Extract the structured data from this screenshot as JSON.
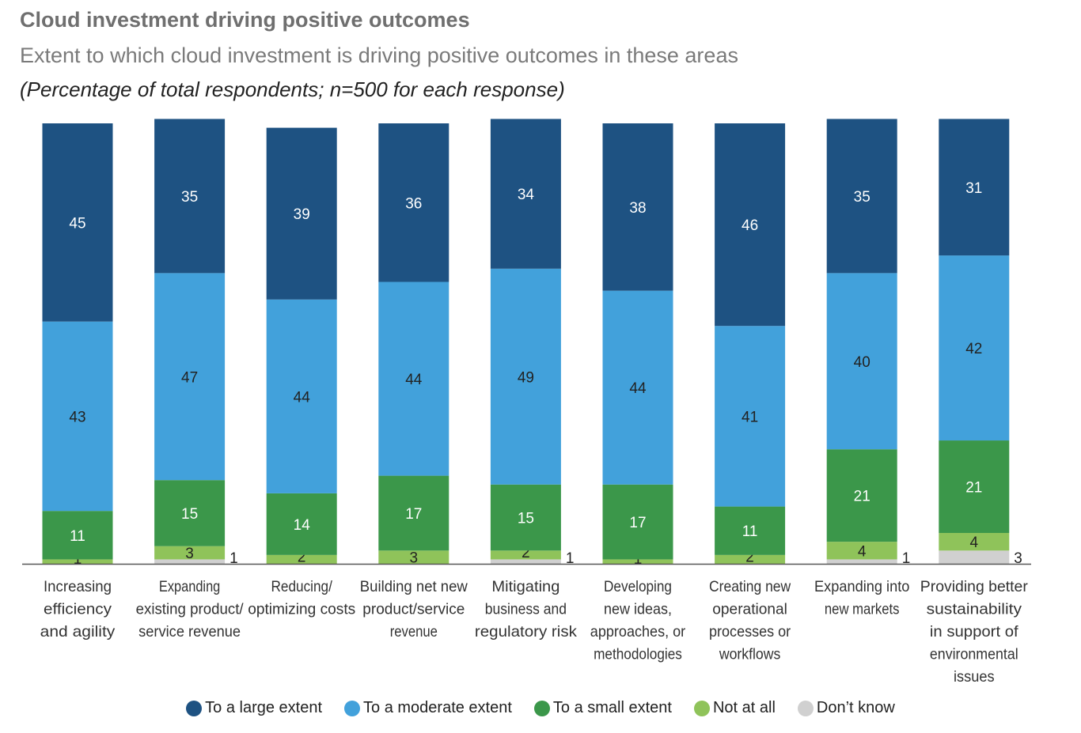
{
  "header": {
    "title": "Cloud investment driving positive outcomes",
    "subtitle": "Extent to which cloud investment is driving positive outcomes in these areas",
    "note": "(Percentage of total respondents; n=500 for each response)"
  },
  "chart_data": {
    "type": "bar",
    "stacked": true,
    "title": "Cloud investment driving positive outcomes",
    "subtitle": "Extent to which cloud investment is driving positive outcomes in these areas",
    "ylim": [
      0,
      100
    ],
    "categories": [
      [
        "Increasing",
        "efficiency",
        "and agility"
      ],
      [
        "Expanding",
        "existing product/",
        "service revenue"
      ],
      [
        "Reducing/",
        "optimizing costs"
      ],
      [
        "Building net new",
        "product/service",
        "revenue"
      ],
      [
        "Mitigating",
        "business and",
        "regulatory risk"
      ],
      [
        "Developing",
        "new ideas,",
        "approaches, or",
        "methodologies"
      ],
      [
        "Creating new",
        "operational",
        "processes or",
        "workflows"
      ],
      [
        "Expanding into",
        "new markets"
      ],
      [
        "Providing better",
        "sustainability",
        "in support of",
        "environmental",
        "issues"
      ]
    ],
    "series": [
      {
        "name": "Don’t know",
        "color": "#d0d0d0",
        "values": [
          0,
          1,
          0,
          0,
          1,
          0,
          0,
          1,
          3
        ]
      },
      {
        "name": "Not at all",
        "color": "#8fc35a",
        "values": [
          1,
          3,
          2,
          3,
          2,
          1,
          2,
          4,
          4
        ]
      },
      {
        "name": "To a small extent",
        "color": "#3b974a",
        "values": [
          11,
          15,
          14,
          17,
          15,
          17,
          11,
          21,
          21
        ]
      },
      {
        "name": "To a moderate extent",
        "color": "#42a1db",
        "values": [
          43,
          47,
          44,
          44,
          49,
          44,
          41,
          40,
          42
        ]
      },
      {
        "name": "To a large extent",
        "color": "#1e5282",
        "values": [
          45,
          35,
          39,
          36,
          34,
          38,
          46,
          35,
          31
        ]
      }
    ],
    "legend": [
      "To a large extent",
      "To a moderate extent",
      "To a small extent",
      "Not at all",
      "Don’t know"
    ],
    "legend_colors": [
      "#1e5282",
      "#42a1db",
      "#3b974a",
      "#8fc35a",
      "#d0d0d0"
    ],
    "legend_position": "bottom"
  }
}
